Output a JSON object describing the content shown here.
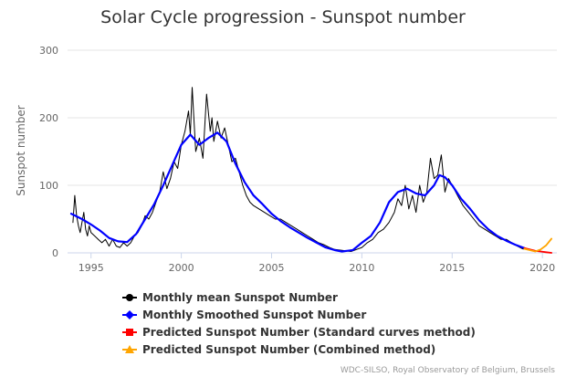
{
  "chart_data": {
    "type": "line",
    "title": "Solar Cycle progression - Sunspot number",
    "xlabel": "",
    "ylabel": "Sunspot number",
    "xlim": [
      1993.7,
      2020.8
    ],
    "ylim": [
      0,
      300
    ],
    "x_ticks": [
      "1995",
      "2000",
      "2005",
      "2010",
      "2015",
      "2020"
    ],
    "y_ticks": [
      "0",
      "100",
      "200",
      "300"
    ],
    "grid": true,
    "legend_position": "bottom",
    "credit": "WDC-SILSO, Royal Observatory of Belgium, Brussels",
    "series": [
      {
        "name": "Monthly mean Sunspot Number",
        "color": "#000000",
        "marker": "circle",
        "x": [
          1994.0,
          1994.1,
          1994.2,
          1994.3,
          1994.4,
          1994.5,
          1994.6,
          1994.7,
          1994.8,
          1994.9,
          1995.0,
          1995.2,
          1995.4,
          1995.6,
          1995.8,
          1996.0,
          1996.2,
          1996.4,
          1996.6,
          1996.8,
          1997.0,
          1997.2,
          1997.4,
          1997.6,
          1997.8,
          1998.0,
          1998.2,
          1998.4,
          1998.6,
          1998.8,
          1999.0,
          1999.2,
          1999.4,
          1999.6,
          1999.8,
          2000.0,
          2000.2,
          2000.4,
          2000.5,
          2000.6,
          2000.8,
          2001.0,
          2001.2,
          2001.4,
          2001.6,
          2001.7,
          2001.8,
          2002.0,
          2002.2,
          2002.4,
          2002.6,
          2002.8,
          2003.0,
          2003.2,
          2003.4,
          2003.6,
          2003.8,
          2004.0,
          2004.3,
          2004.6,
          2004.9,
          2005.2,
          2005.5,
          2005.8,
          2006.1,
          2006.4,
          2006.7,
          2007.0,
          2007.3,
          2007.6,
          2007.9,
          2008.2,
          2008.5,
          2008.8,
          2009.1,
          2009.4,
          2009.7,
          2010.0,
          2010.3,
          2010.6,
          2010.9,
          2011.2,
          2011.5,
          2011.8,
          2012.0,
          2012.2,
          2012.4,
          2012.6,
          2012.8,
          2013.0,
          2013.2,
          2013.4,
          2013.6,
          2013.8,
          2014.0,
          2014.2,
          2014.4,
          2014.6,
          2014.8,
          2015.0,
          2015.3,
          2015.6,
          2015.9,
          2016.2,
          2016.5,
          2016.8,
          2017.1,
          2017.4,
          2017.7,
          2018.0,
          2018.3,
          2018.6,
          2018.9,
          2019.2,
          2019.5,
          2019.8
        ],
        "values": [
          45,
          85,
          55,
          40,
          30,
          45,
          60,
          35,
          25,
          40,
          30,
          25,
          20,
          15,
          20,
          10,
          20,
          10,
          8,
          15,
          10,
          15,
          25,
          30,
          40,
          55,
          50,
          60,
          75,
          90,
          120,
          95,
          110,
          135,
          125,
          160,
          180,
          210,
          175,
          245,
          150,
          170,
          140,
          235,
          180,
          200,
          165,
          195,
          170,
          185,
          160,
          135,
          140,
          120,
          100,
          85,
          75,
          70,
          65,
          60,
          55,
          50,
          50,
          45,
          40,
          35,
          30,
          25,
          20,
          15,
          12,
          8,
          5,
          4,
          3,
          2,
          5,
          8,
          15,
          20,
          30,
          35,
          45,
          60,
          80,
          70,
          100,
          65,
          85,
          60,
          100,
          75,
          90,
          140,
          110,
          115,
          145,
          90,
          110,
          100,
          85,
          70,
          60,
          50,
          40,
          35,
          30,
          25,
          20,
          20,
          15,
          10,
          6,
          5,
          3,
          2
        ]
      },
      {
        "name": "Monthly Smoothed Sunspot Number",
        "color": "#0000ff",
        "marker": "diamond",
        "x": [
          1993.9,
          1994.5,
          1995.0,
          1995.5,
          1996.0,
          1996.5,
          1997.0,
          1997.5,
          1998.0,
          1998.5,
          1999.0,
          1999.5,
          2000.0,
          2000.5,
          2001.0,
          2001.5,
          2002.0,
          2002.5,
          2003.0,
          2003.5,
          2004.0,
          2004.5,
          2005.0,
          2005.5,
          2006.0,
          2006.5,
          2007.0,
          2007.5,
          2008.0,
          2008.5,
          2008.9,
          2009.5,
          2010.0,
          2010.5,
          2011.0,
          2011.5,
          2012.0,
          2012.5,
          2013.0,
          2013.5,
          2014.0,
          2014.3,
          2014.6,
          2015.0,
          2015.5,
          2016.0,
          2016.5,
          2017.0,
          2017.5,
          2018.0,
          2018.5,
          2019.0
        ],
        "values": [
          58,
          50,
          42,
          33,
          22,
          17,
          16,
          28,
          50,
          72,
          100,
          130,
          160,
          175,
          160,
          170,
          178,
          165,
          132,
          105,
          85,
          72,
          58,
          47,
          38,
          30,
          22,
          15,
          8,
          4,
          2,
          4,
          15,
          25,
          45,
          75,
          90,
          95,
          88,
          85,
          100,
          115,
          112,
          100,
          80,
          65,
          48,
          35,
          25,
          18,
          12,
          7
        ]
      },
      {
        "name": "Predicted Sunspot Number (Standard curves method)",
        "color": "#ff0000",
        "marker": "square",
        "x": [
          2019.0,
          2019.3,
          2019.6,
          2019.9,
          2020.2,
          2020.5
        ],
        "values": [
          7,
          5,
          3,
          2,
          1,
          0
        ]
      },
      {
        "name": "Predicted Sunspot Number (Combined method)",
        "color": "#ffa500",
        "marker": "triangle",
        "x": [
          2019.0,
          2019.3,
          2019.6,
          2019.9,
          2020.2,
          2020.5
        ],
        "values": [
          6,
          4,
          2,
          5,
          11,
          21
        ]
      }
    ]
  }
}
